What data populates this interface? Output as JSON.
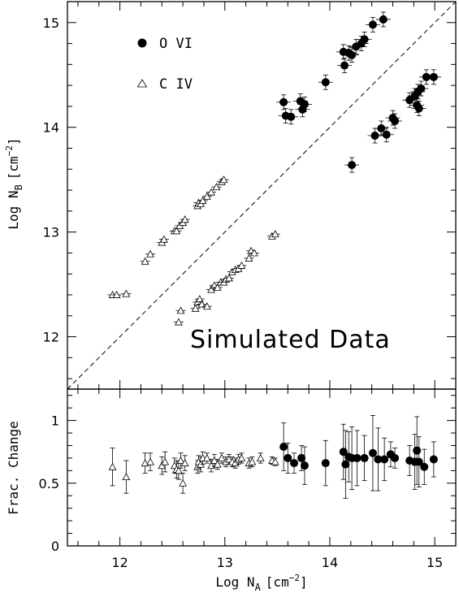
{
  "chart_data": [
    {
      "type": "scatter",
      "panel": "top",
      "xlabel": "Log N",
      "xlabel_sub": "A",
      "xlabel_unit": "[cm",
      "xlabel_exp": "−2",
      "xlabel_close": "]",
      "ylabel": "Log N",
      "ylabel_sub": "B",
      "ylabel_unit": "[cm",
      "ylabel_exp": "−2",
      "ylabel_close": "]",
      "xlim": [
        11.5,
        15.2
      ],
      "ylim": [
        11.5,
        15.2
      ],
      "xticks": [
        "12",
        "13",
        "14",
        "15"
      ],
      "yticks": [
        "12",
        "13",
        "14",
        "15"
      ],
      "reference_line": "y = x (dashed)",
      "annotation": "Simulated Data",
      "legend_placement": "top-left",
      "series": [
        {
          "name": "O VI",
          "marker": "filled-circle",
          "points": [
            {
              "x": 13.56,
              "y": 14.24
            },
            {
              "x": 13.58,
              "y": 14.11
            },
            {
              "x": 13.63,
              "y": 14.1
            },
            {
              "x": 13.72,
              "y": 14.25
            },
            {
              "x": 13.74,
              "y": 14.17
            },
            {
              "x": 13.76,
              "y": 14.22
            },
            {
              "x": 13.96,
              "y": 14.43
            },
            {
              "x": 14.13,
              "y": 14.72
            },
            {
              "x": 14.14,
              "y": 14.59
            },
            {
              "x": 14.18,
              "y": 14.71
            },
            {
              "x": 14.21,
              "y": 14.69
            },
            {
              "x": 14.25,
              "y": 14.77
            },
            {
              "x": 14.3,
              "y": 14.8
            },
            {
              "x": 14.33,
              "y": 14.84
            },
            {
              "x": 14.41,
              "y": 14.98
            },
            {
              "x": 14.51,
              "y": 15.03
            },
            {
              "x": 14.21,
              "y": 13.64
            },
            {
              "x": 14.43,
              "y": 13.92
            },
            {
              "x": 14.49,
              "y": 13.99
            },
            {
              "x": 14.54,
              "y": 13.93
            },
            {
              "x": 14.6,
              "y": 14.09
            },
            {
              "x": 14.62,
              "y": 14.06
            },
            {
              "x": 14.76,
              "y": 14.26
            },
            {
              "x": 14.81,
              "y": 14.3
            },
            {
              "x": 14.83,
              "y": 14.21
            },
            {
              "x": 14.84,
              "y": 14.34
            },
            {
              "x": 14.85,
              "y": 14.18
            },
            {
              "x": 14.87,
              "y": 14.37
            },
            {
              "x": 14.92,
              "y": 14.48
            },
            {
              "x": 14.99,
              "y": 14.48
            }
          ]
        },
        {
          "name": "C IV",
          "marker": "open-triangle",
          "points": [
            {
              "x": 11.93,
              "y": 12.4
            },
            {
              "x": 11.97,
              "y": 12.4
            },
            {
              "x": 12.06,
              "y": 12.41
            },
            {
              "x": 12.24,
              "y": 12.72
            },
            {
              "x": 12.29,
              "y": 12.79
            },
            {
              "x": 12.4,
              "y": 12.9
            },
            {
              "x": 12.42,
              "y": 12.93
            },
            {
              "x": 12.52,
              "y": 13.01
            },
            {
              "x": 12.54,
              "y": 13.01
            },
            {
              "x": 12.57,
              "y": 13.06
            },
            {
              "x": 12.6,
              "y": 13.09
            },
            {
              "x": 12.62,
              "y": 13.12
            },
            {
              "x": 12.74,
              "y": 13.25
            },
            {
              "x": 12.75,
              "y": 13.28
            },
            {
              "x": 12.77,
              "y": 13.27
            },
            {
              "x": 12.79,
              "y": 13.3
            },
            {
              "x": 12.83,
              "y": 13.34
            },
            {
              "x": 12.87,
              "y": 13.38
            },
            {
              "x": 12.92,
              "y": 13.43
            },
            {
              "x": 12.97,
              "y": 13.48
            },
            {
              "x": 12.99,
              "y": 13.5
            },
            {
              "x": 12.56,
              "y": 12.14
            },
            {
              "x": 12.58,
              "y": 12.25
            },
            {
              "x": 12.72,
              "y": 12.27
            },
            {
              "x": 12.74,
              "y": 12.33
            },
            {
              "x": 12.76,
              "y": 12.36
            },
            {
              "x": 12.78,
              "y": 12.31
            },
            {
              "x": 12.83,
              "y": 12.29
            },
            {
              "x": 12.87,
              "y": 12.45
            },
            {
              "x": 12.9,
              "y": 12.49
            },
            {
              "x": 12.93,
              "y": 12.47
            },
            {
              "x": 12.96,
              "y": 12.52
            },
            {
              "x": 12.99,
              "y": 12.52
            },
            {
              "x": 13.01,
              "y": 12.55
            },
            {
              "x": 13.04,
              "y": 12.56
            },
            {
              "x": 13.07,
              "y": 12.62
            },
            {
              "x": 13.1,
              "y": 12.64
            },
            {
              "x": 13.13,
              "y": 12.65
            },
            {
              "x": 13.16,
              "y": 12.68
            },
            {
              "x": 13.23,
              "y": 12.75
            },
            {
              "x": 13.25,
              "y": 12.82
            },
            {
              "x": 13.28,
              "y": 12.8
            },
            {
              "x": 13.45,
              "y": 12.96
            },
            {
              "x": 13.48,
              "y": 12.98
            }
          ]
        }
      ]
    },
    {
      "type": "scatter",
      "panel": "bottom",
      "ylabel": "Frac. Change",
      "xlim": [
        11.5,
        15.2
      ],
      "ylim": [
        0,
        1.25
      ],
      "xticks": [
        "12",
        "13",
        "14",
        "15"
      ],
      "yticks": [
        "0",
        "0.5",
        "1"
      ],
      "series": [
        {
          "name": "O VI",
          "marker": "filled-circle",
          "points": [
            {
              "x": 13.56,
              "y": 0.79,
              "err": 0.19
            },
            {
              "x": 13.6,
              "y": 0.7,
              "err": 0.12
            },
            {
              "x": 13.66,
              "y": 0.66,
              "err": 0.08
            },
            {
              "x": 13.73,
              "y": 0.7,
              "err": 0.1
            },
            {
              "x": 13.76,
              "y": 0.64,
              "err": 0.15
            },
            {
              "x": 13.96,
              "y": 0.66,
              "err": 0.18
            },
            {
              "x": 14.13,
              "y": 0.75,
              "err": 0.22
            },
            {
              "x": 14.15,
              "y": 0.65,
              "err": 0.27
            },
            {
              "x": 14.18,
              "y": 0.71,
              "err": 0.2
            },
            {
              "x": 14.21,
              "y": 0.7,
              "err": 0.25
            },
            {
              "x": 14.26,
              "y": 0.7,
              "err": 0.22
            },
            {
              "x": 14.33,
              "y": 0.7,
              "err": 0.18
            },
            {
              "x": 14.41,
              "y": 0.74,
              "err": 0.3
            },
            {
              "x": 14.46,
              "y": 0.69,
              "err": 0.25
            },
            {
              "x": 14.52,
              "y": 0.69,
              "err": 0.17
            },
            {
              "x": 14.58,
              "y": 0.73,
              "err": 0.1
            },
            {
              "x": 14.62,
              "y": 0.7,
              "err": 0.08
            },
            {
              "x": 14.76,
              "y": 0.68,
              "err": 0.12
            },
            {
              "x": 14.81,
              "y": 0.67,
              "err": 0.22
            },
            {
              "x": 14.83,
              "y": 0.76,
              "err": 0.27
            },
            {
              "x": 14.85,
              "y": 0.67,
              "err": 0.2
            },
            {
              "x": 14.9,
              "y": 0.63,
              "err": 0.14
            },
            {
              "x": 14.99,
              "y": 0.69,
              "err": 0.14
            }
          ]
        },
        {
          "name": "C IV",
          "marker": "open-triangle",
          "points": [
            {
              "x": 11.93,
              "y": 0.63,
              "err": 0.15
            },
            {
              "x": 12.06,
              "y": 0.55,
              "err": 0.13
            },
            {
              "x": 12.24,
              "y": 0.66,
              "err": 0.08
            },
            {
              "x": 12.29,
              "y": 0.67,
              "err": 0.07
            },
            {
              "x": 12.4,
              "y": 0.64,
              "err": 0.07
            },
            {
              "x": 12.43,
              "y": 0.67,
              "err": 0.08
            },
            {
              "x": 12.52,
              "y": 0.64,
              "err": 0.06
            },
            {
              "x": 12.54,
              "y": 0.61,
              "err": 0.07
            },
            {
              "x": 12.56,
              "y": 0.6,
              "err": 0.07
            },
            {
              "x": 12.58,
              "y": 0.68,
              "err": 0.06
            },
            {
              "x": 12.6,
              "y": 0.5,
              "err": 0.08
            },
            {
              "x": 12.62,
              "y": 0.66,
              "err": 0.06
            },
            {
              "x": 12.74,
              "y": 0.63,
              "err": 0.05
            },
            {
              "x": 12.75,
              "y": 0.67,
              "err": 0.05
            },
            {
              "x": 12.77,
              "y": 0.65,
              "err": 0.06
            },
            {
              "x": 12.79,
              "y": 0.7,
              "err": 0.05
            },
            {
              "x": 12.83,
              "y": 0.7,
              "err": 0.04
            },
            {
              "x": 12.87,
              "y": 0.64,
              "err": 0.05
            },
            {
              "x": 12.9,
              "y": 0.68,
              "err": 0.05
            },
            {
              "x": 12.93,
              "y": 0.65,
              "err": 0.04
            },
            {
              "x": 12.97,
              "y": 0.7,
              "err": 0.04
            },
            {
              "x": 13.01,
              "y": 0.67,
              "err": 0.04
            },
            {
              "x": 13.04,
              "y": 0.69,
              "err": 0.04
            },
            {
              "x": 13.07,
              "y": 0.67,
              "err": 0.04
            },
            {
              "x": 13.1,
              "y": 0.66,
              "err": 0.04
            },
            {
              "x": 13.13,
              "y": 0.69,
              "err": 0.04
            },
            {
              "x": 13.16,
              "y": 0.7,
              "err": 0.04
            },
            {
              "x": 13.23,
              "y": 0.66,
              "err": 0.04
            },
            {
              "x": 13.26,
              "y": 0.67,
              "err": 0.04
            },
            {
              "x": 13.34,
              "y": 0.7,
              "err": 0.04
            },
            {
              "x": 13.45,
              "y": 0.68,
              "err": 0.03
            },
            {
              "x": 13.48,
              "y": 0.67,
              "err": 0.03
            }
          ]
        }
      ]
    }
  ]
}
